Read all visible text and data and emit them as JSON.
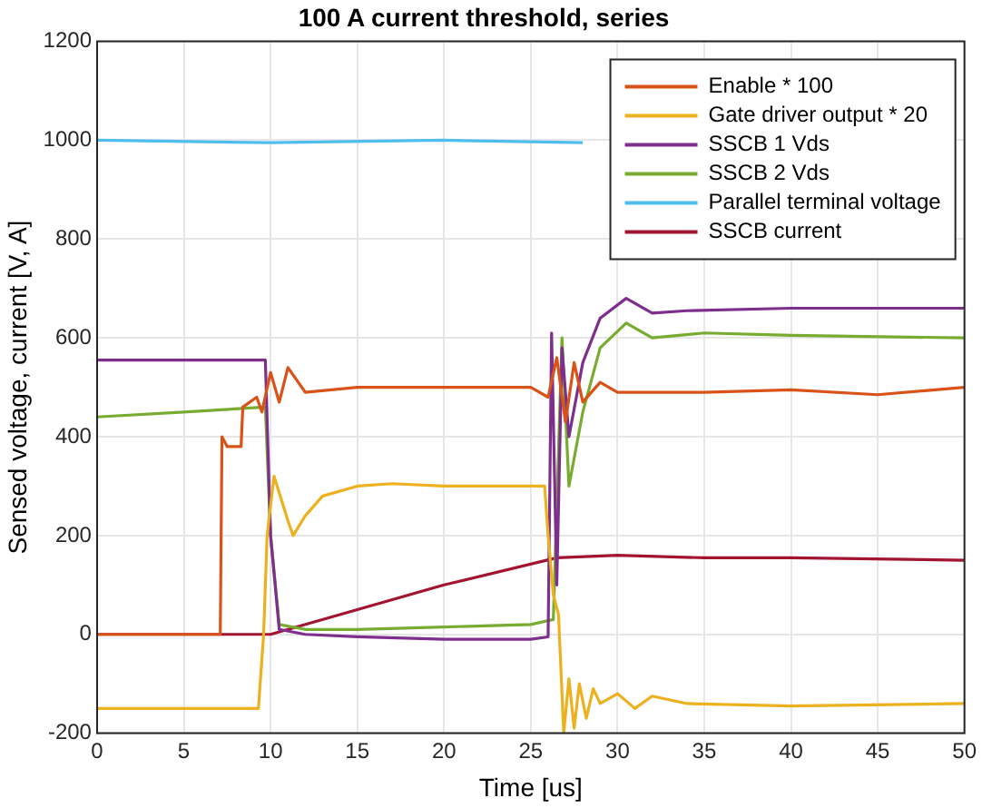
{
  "chart_data": {
    "type": "line",
    "title": "100 A current threshold, series",
    "xlabel": "Time [us]",
    "ylabel": "Sensed voltage, current [V, A]",
    "xlim": [
      0,
      50
    ],
    "xticks": [
      0,
      5,
      10,
      15,
      20,
      25,
      30,
      35,
      40,
      45,
      50
    ],
    "ylim": [
      -200,
      1200
    ],
    "yticks": [
      -200,
      0,
      200,
      400,
      600,
      800,
      1000,
      1200
    ],
    "grid": true,
    "legend": "top right",
    "marker": "none",
    "line_style": "solid",
    "series": [
      {
        "name": "Enable * 100",
        "color": "#d95319",
        "x": [
          0,
          7.1,
          7.2,
          7.5,
          8.3,
          8.4,
          9.2,
          9.5,
          10,
          10.5,
          11,
          12,
          15,
          20,
          25,
          26,
          26.5,
          27,
          27.5,
          28,
          29,
          30,
          35,
          40,
          45,
          50
        ],
        "values": [
          0,
          0,
          400,
          380,
          380,
          460,
          480,
          450,
          530,
          470,
          540,
          490,
          500,
          500,
          500,
          480,
          560,
          430,
          550,
          470,
          510,
          490,
          490,
          495,
          485,
          500
        ]
      },
      {
        "name": "Gate driver output * 20",
        "color": "#edb120",
        "x": [
          0,
          9.3,
          9.6,
          9.8,
          10.2,
          11,
          11.3,
          12,
          13,
          15,
          17,
          20,
          25.8,
          26,
          26.3,
          26.6,
          26.9,
          27.2,
          27.5,
          27.8,
          28.2,
          28.6,
          29,
          30,
          31,
          32,
          34,
          40,
          50
        ],
        "values": [
          -150,
          -150,
          0,
          200,
          320,
          230,
          200,
          240,
          280,
          300,
          305,
          300,
          300,
          200,
          80,
          40,
          -200,
          -90,
          -190,
          -100,
          -170,
          -110,
          -140,
          -120,
          -150,
          -125,
          -140,
          -145,
          -140
        ]
      },
      {
        "name": "SSCB 1 Vds",
        "color": "#7e2f8e",
        "x": [
          0,
          9.7,
          10,
          10.5,
          12,
          15,
          20,
          25,
          26,
          26.2,
          26.5,
          26.8,
          27.2,
          28,
          29,
          30.5,
          32,
          34,
          40,
          50
        ],
        "values": [
          555,
          555,
          200,
          10,
          0,
          -5,
          -10,
          -10,
          -5,
          610,
          100,
          580,
          400,
          550,
          640,
          680,
          650,
          655,
          660,
          660
        ]
      },
      {
        "name": "SSCB 2 Vds",
        "color": "#77ac30",
        "x": [
          0,
          5,
          9.7,
          10,
          10.5,
          12,
          15,
          20,
          25,
          26.3,
          26.8,
          27.2,
          28,
          29,
          30.5,
          32,
          35,
          40,
          50
        ],
        "values": [
          440,
          450,
          460,
          200,
          20,
          10,
          10,
          15,
          20,
          30,
          600,
          300,
          450,
          580,
          630,
          600,
          610,
          605,
          600
        ]
      },
      {
        "name": "Parallel terminal voltage",
        "color": "#4dbeee",
        "x": [
          0,
          10,
          20,
          28
        ],
        "values": [
          1000,
          995,
          1000,
          995
        ]
      },
      {
        "name": "SSCB current",
        "color": "#a2142f",
        "x": [
          0,
          10,
          15,
          20,
          26.5,
          30,
          35,
          40,
          50
        ],
        "values": [
          0,
          0,
          50,
          100,
          155,
          160,
          155,
          155,
          150
        ]
      }
    ]
  }
}
